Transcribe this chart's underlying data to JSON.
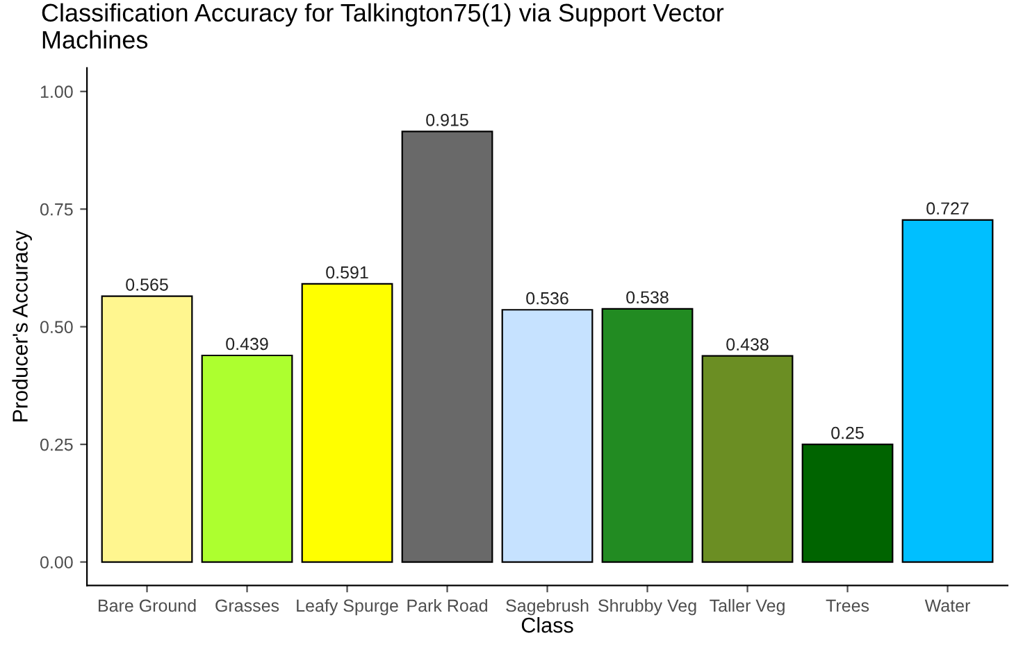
{
  "chart_data": {
    "type": "bar",
    "title": "Classification Accuracy for Talkington75(1) via Support Vector\nMachines",
    "xlabel": "Class",
    "ylabel": "Producer's Accuracy",
    "categories": [
      "Bare Ground",
      "Grasses",
      "Leafy Spurge",
      "Park Road",
      "Sagebrush",
      "Shrubby Veg",
      "Taller Veg",
      "Trees",
      "Water"
    ],
    "values": [
      0.565,
      0.439,
      0.591,
      0.915,
      0.536,
      0.538,
      0.438,
      0.25,
      0.727
    ],
    "colors": [
      "#fff68f",
      "#adff2f",
      "#ffff00",
      "#696969",
      "#c6e2ff",
      "#228b22",
      "#6b8e23",
      "#006400",
      "#00bfff"
    ],
    "ylim": [
      -0.05,
      1.05
    ],
    "yticks": [
      {
        "value": 0,
        "label": "0.00"
      },
      {
        "value": 0.25,
        "label": "0.25"
      },
      {
        "value": 0.5,
        "label": "0.50"
      },
      {
        "value": 0.75,
        "label": "0.75"
      },
      {
        "value": 1,
        "label": "1.00"
      }
    ],
    "data_labels": true,
    "grid": false,
    "legend": false
  }
}
